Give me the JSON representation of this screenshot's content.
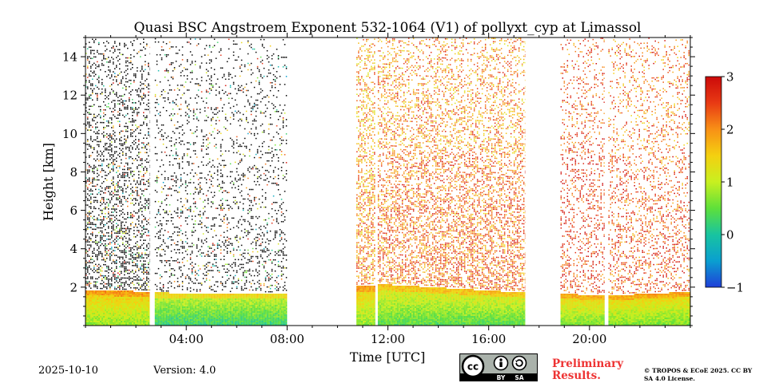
{
  "chart_data": {
    "type": "heatmap",
    "title": "Quasi BSC Angstroem Exponent 532-1064 (V1) of pollyxt_cyp at Limassol",
    "xlabel": "Time [UTC]",
    "ylabel": "Height [km]",
    "xlim_hours": [
      0,
      24
    ],
    "ylim_km": [
      0,
      15
    ],
    "x_ticks": [
      {
        "value": 4,
        "label": "04:00"
      },
      {
        "value": 8,
        "label": "08:00"
      },
      {
        "value": 12,
        "label": "12:00"
      },
      {
        "value": 16,
        "label": "16:00"
      },
      {
        "value": 20,
        "label": "20:00"
      }
    ],
    "y_ticks": [
      {
        "value": 2,
        "label": "2"
      },
      {
        "value": 4,
        "label": "4"
      },
      {
        "value": 6,
        "label": "6"
      },
      {
        "value": 8,
        "label": "8"
      },
      {
        "value": 10,
        "label": "10"
      },
      {
        "value": 12,
        "label": "12"
      },
      {
        "value": 14,
        "label": "14"
      }
    ],
    "colorbar": {
      "vmin": -1,
      "vmax": 3,
      "ticks": [
        {
          "value": -1,
          "label": "−1"
        },
        {
          "value": 0,
          "label": "0"
        },
        {
          "value": 1,
          "label": "1"
        },
        {
          "value": 2,
          "label": "2"
        },
        {
          "value": 3,
          "label": "3"
        }
      ],
      "colors": [
        "#1f3fd8",
        "#0a9fd0",
        "#18c4a0",
        "#5ee03a",
        "#c8f020",
        "#f4d010",
        "#f89016",
        "#e83a14",
        "#cc0a0a"
      ]
    },
    "data_gaps_hours": [
      [
        2.55,
        2.75
      ],
      [
        8.0,
        10.75
      ],
      [
        11.5,
        11.6
      ],
      [
        17.45,
        18.85
      ],
      [
        20.6,
        20.75
      ]
    ],
    "periods": [
      {
        "start": 0.0,
        "end": 2.55,
        "boundary_layer_top_km": [
          1.9,
          1.8
        ],
        "bl_value": 1.0,
        "aloft_value": null,
        "aloft_density": 0.42
      },
      {
        "start": 2.75,
        "end": 8.0,
        "boundary_layer_top_km": [
          1.75,
          1.7
        ],
        "bl_value": 0.5,
        "aloft_value": null,
        "aloft_density": 0.22
      },
      {
        "start": 10.75,
        "end": 11.5,
        "boundary_layer_top_km": [
          2.1,
          2.15
        ],
        "bl_value": 1.0,
        "aloft_value": 2.0,
        "aloft_density": 0.55
      },
      {
        "start": 11.6,
        "end": 17.45,
        "boundary_layer_top_km": [
          2.2,
          1.75
        ],
        "bl_value": 0.7,
        "aloft_value": 2.2,
        "aloft_density": 0.5
      },
      {
        "start": 18.85,
        "end": 20.6,
        "boundary_layer_top_km": [
          1.7,
          1.6
        ],
        "bl_value": 0.9,
        "aloft_value": 2.6,
        "aloft_density": 0.3
      },
      {
        "start": 20.75,
        "end": 24.0,
        "boundary_layer_top_km": [
          1.6,
          1.8
        ],
        "bl_value": 0.9,
        "aloft_value": 2.4,
        "aloft_density": 0.32
      }
    ]
  },
  "footer": {
    "date": "2025-10-10",
    "version": "Version: 4.0",
    "preliminary": "Preliminary Results.",
    "copyright": "© TROPOS & ECoE 2025. CC BY SA 4.0 License.",
    "license_badge": [
      "BY",
      "SA"
    ]
  }
}
